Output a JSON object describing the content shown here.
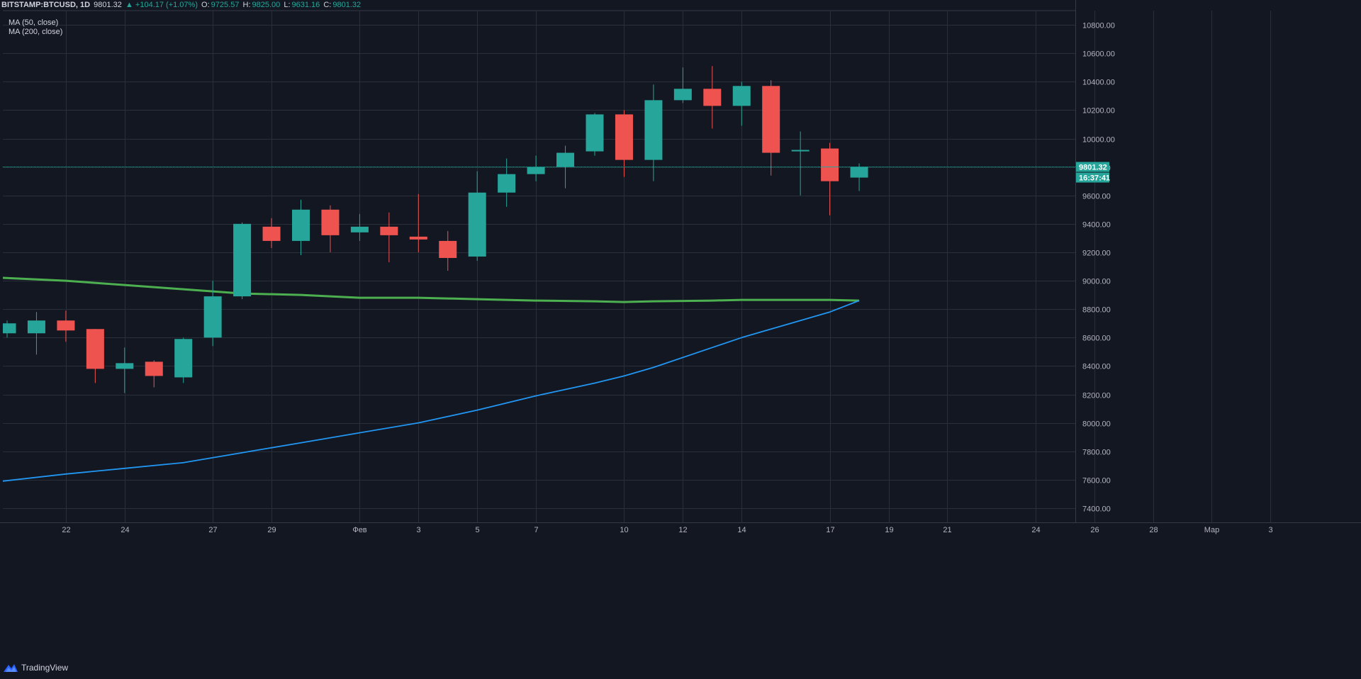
{
  "header": {
    "symbol": "BITSTAMP:BTCUSD, 1D",
    "price": "9801.32",
    "change": "▲ +104.17 (+1.07%)",
    "open_label": "O:",
    "open": "9725.57",
    "high_label": "H:",
    "high": "9825.00",
    "low_label": "L:",
    "low": "9631.16",
    "close_label": "C:",
    "close": "9801.32"
  },
  "indicators": {
    "ma50": "MA (50, close)",
    "ma200": "MA (200, close)"
  },
  "price_axis": {
    "last_price": "9801.32",
    "countdown": "16:37:41"
  },
  "brand": {
    "name": "TradingView"
  },
  "colors": {
    "background": "#131722",
    "grid": "#2a2e39",
    "up": "#26a69a",
    "down": "#ef5350",
    "ma50": "#2196f3",
    "ma200": "#4caf50",
    "axis_text": "#b2b5be"
  },
  "chart_data": {
    "type": "candlestick",
    "ylim": [
      7300,
      10900
    ],
    "y_ticks": [
      7400,
      7600,
      7800,
      8000,
      8200,
      8400,
      8600,
      8800,
      9000,
      9200,
      9400,
      9600,
      9800,
      10000,
      10200,
      10400,
      10600,
      10800
    ],
    "y_tick_labels": [
      "7400.00",
      "7600.00",
      "7800.00",
      "8000.00",
      "8200.00",
      "8400.00",
      "8600.00",
      "8800.00",
      "9000.00",
      "9200.00",
      "9400.00",
      "9600.00",
      "9800.00",
      "10000.00",
      "10200.00",
      "10400.00",
      "10600.00",
      "10800.00"
    ],
    "x_ticks": [
      {
        "label": "22",
        "day": 2
      },
      {
        "label": "24",
        "day": 4
      },
      {
        "label": "27",
        "day": 7
      },
      {
        "label": "29",
        "day": 9
      },
      {
        "label": "Фев",
        "day": 12
      },
      {
        "label": "3",
        "day": 14
      },
      {
        "label": "5",
        "day": 16
      },
      {
        "label": "7",
        "day": 18
      },
      {
        "label": "10",
        "day": 21
      },
      {
        "label": "12",
        "day": 23
      },
      {
        "label": "14",
        "day": 25
      },
      {
        "label": "17",
        "day": 28
      },
      {
        "label": "19",
        "day": 30
      },
      {
        "label": "21",
        "day": 32
      },
      {
        "label": "24",
        "day": 35
      },
      {
        "label": "26",
        "day": 37
      },
      {
        "label": "28",
        "day": 39
      },
      {
        "label": "Мар",
        "day": 41
      },
      {
        "label": "3",
        "day": 43
      }
    ],
    "candles": [
      {
        "day": 0,
        "o": 8630,
        "h": 8720,
        "l": 8600,
        "c": 8700
      },
      {
        "day": 1,
        "o": 8630,
        "h": 8780,
        "l": 8480,
        "c": 8720
      },
      {
        "day": 2,
        "o": 8720,
        "h": 8790,
        "l": 8570,
        "c": 8650
      },
      {
        "day": 3,
        "o": 8660,
        "h": 8660,
        "l": 8280,
        "c": 8380
      },
      {
        "day": 4,
        "o": 8380,
        "h": 8530,
        "l": 8210,
        "c": 8420
      },
      {
        "day": 5,
        "o": 8430,
        "h": 8440,
        "l": 8250,
        "c": 8330
      },
      {
        "day": 6,
        "o": 8320,
        "h": 8600,
        "l": 8280,
        "c": 8590
      },
      {
        "day": 7,
        "o": 8600,
        "h": 9000,
        "l": 8540,
        "c": 8890
      },
      {
        "day": 8,
        "o": 8890,
        "h": 9410,
        "l": 8870,
        "c": 9400
      },
      {
        "day": 9,
        "o": 9380,
        "h": 9440,
        "l": 9230,
        "c": 9280
      },
      {
        "day": 10,
        "o": 9280,
        "h": 9570,
        "l": 9180,
        "c": 9500
      },
      {
        "day": 11,
        "o": 9500,
        "h": 9530,
        "l": 9200,
        "c": 9320
      },
      {
        "day": 12,
        "o": 9340,
        "h": 9470,
        "l": 9280,
        "c": 9380
      },
      {
        "day": 13,
        "o": 9380,
        "h": 9480,
        "l": 9130,
        "c": 9320
      },
      {
        "day": 14,
        "o": 9310,
        "h": 9610,
        "l": 9200,
        "c": 9290
      },
      {
        "day": 15,
        "o": 9280,
        "h": 9350,
        "l": 9070,
        "c": 9160
      },
      {
        "day": 16,
        "o": 9170,
        "h": 9770,
        "l": 9140,
        "c": 9620
      },
      {
        "day": 17,
        "o": 9620,
        "h": 9860,
        "l": 9520,
        "c": 9750
      },
      {
        "day": 18,
        "o": 9750,
        "h": 9880,
        "l": 9700,
        "c": 9800
      },
      {
        "day": 19,
        "o": 9800,
        "h": 9950,
        "l": 9650,
        "c": 9900
      },
      {
        "day": 20,
        "o": 9910,
        "h": 10180,
        "l": 9880,
        "c": 10170
      },
      {
        "day": 21,
        "o": 10170,
        "h": 10200,
        "l": 9730,
        "c": 9850
      },
      {
        "day": 22,
        "o": 9850,
        "h": 10380,
        "l": 9700,
        "c": 10270
      },
      {
        "day": 23,
        "o": 10270,
        "h": 10500,
        "l": 10250,
        "c": 10350
      },
      {
        "day": 24,
        "o": 10350,
        "h": 10510,
        "l": 10070,
        "c": 10230
      },
      {
        "day": 25,
        "o": 10230,
        "h": 10400,
        "l": 10090,
        "c": 10370
      },
      {
        "day": 26,
        "o": 10370,
        "h": 10410,
        "l": 9740,
        "c": 9900
      },
      {
        "day": 27,
        "o": 9910,
        "h": 10050,
        "l": 9600,
        "c": 9920
      },
      {
        "day": 28,
        "o": 9930,
        "h": 9970,
        "l": 9460,
        "c": 9700
      },
      {
        "day": 29,
        "o": 9725.57,
        "h": 9825,
        "l": 9631.16,
        "c": 9801.32
      }
    ],
    "series": [
      {
        "name": "MA (200, close)",
        "x": [
          0,
          2,
          4,
          6,
          8,
          10,
          12,
          14,
          16,
          18,
          20,
          21,
          22,
          24,
          25,
          26,
          27,
          28,
          29
        ],
        "values": [
          9020,
          9000,
          8970,
          8940,
          8910,
          8900,
          8880,
          8880,
          8870,
          8860,
          8855,
          8850,
          8855,
          8860,
          8865,
          8865,
          8865,
          8865,
          8860
        ]
      },
      {
        "name": "MA (50, close)",
        "x": [
          0,
          2,
          4,
          6,
          8,
          10,
          12,
          14,
          16,
          18,
          20,
          21,
          22,
          24,
          25,
          26,
          27,
          28,
          29
        ],
        "values": [
          7590,
          7640,
          7680,
          7720,
          7790,
          7860,
          7930,
          8000,
          8090,
          8190,
          8280,
          8330,
          8390,
          8530,
          8600,
          8660,
          8720,
          8780,
          8860
        ]
      }
    ]
  }
}
